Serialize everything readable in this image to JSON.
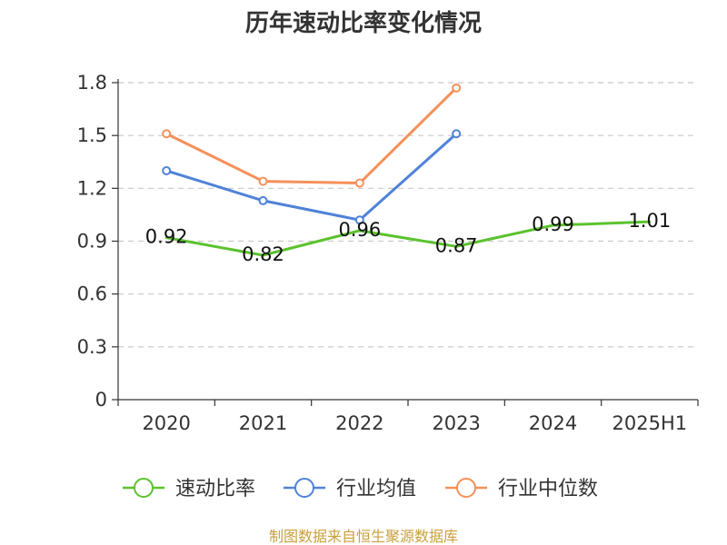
{
  "chart_data": {
    "type": "line",
    "title": "历年速动比率变化情况",
    "categories": [
      "2020",
      "2021",
      "2022",
      "2023",
      "2024",
      "2025H1"
    ],
    "ylim": [
      0,
      1.8
    ],
    "yticks": [
      "0",
      "0.3",
      "0.6",
      "0.9",
      "1.2",
      "1.5",
      "1.8"
    ],
    "grid": true,
    "legend_position": "bottom",
    "series": [
      {
        "name": "速动比率",
        "color": "#5bc22e",
        "values": [
          0.92,
          0.82,
          0.96,
          0.87,
          0.99,
          1.01
        ],
        "labels": [
          "0.92",
          "0.82",
          "0.96",
          "0.87",
          "0.99",
          "1.01"
        ],
        "show_markers": false
      },
      {
        "name": "行业均值",
        "color": "#4f82d8",
        "values": [
          1.3,
          1.13,
          1.02,
          1.51,
          null,
          null
        ],
        "show_markers": true
      },
      {
        "name": "行业中位数",
        "color": "#f5905a",
        "values": [
          1.51,
          1.24,
          1.23,
          1.77,
          null,
          null
        ],
        "show_markers": true
      }
    ]
  },
  "source": "制图数据来自恒生聚源数据库"
}
